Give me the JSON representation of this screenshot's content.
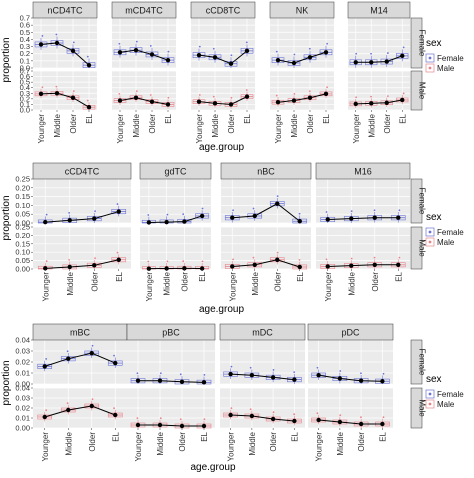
{
  "figure": {
    "y_axis_label": "proportion",
    "x_axis_label": "age.group",
    "legend_title": "sex",
    "legend_entries": [
      "Female",
      "Male"
    ],
    "facet_rows": [
      "Female",
      "Male"
    ],
    "categories": [
      "Younger",
      "Middle",
      "Older",
      "EL"
    ]
  },
  "colors": {
    "panel_bg": "#ebebeb",
    "strip_bg": "#d9d9d9",
    "grid": "#ffffff",
    "female": "#6b74d6",
    "male": "#e8848c",
    "line": "#000000"
  },
  "chart_data": [
    {
      "type": "line",
      "group": 1,
      "ylim": [
        0,
        0.7
      ],
      "yticks": [
        0.0,
        0.1,
        0.2,
        0.3,
        0.4,
        0.5,
        0.6,
        0.7
      ],
      "ytick_labels": [
        "0.0",
        "0.1",
        "0.2",
        "0.3",
        "0.4",
        "0.5",
        "0.6",
        "0.7"
      ],
      "categories": [
        "Younger",
        "Middle",
        "Older",
        "EL"
      ],
      "grid": true,
      "legend": "right",
      "panels": [
        {
          "title": "nCD4TC",
          "Female": [
            0.33,
            0.35,
            0.24,
            0.04
          ],
          "Male": [
            0.29,
            0.3,
            0.22,
            0.05
          ]
        },
        {
          "title": "mCD4TC",
          "Female": [
            0.22,
            0.25,
            0.19,
            0.11
          ],
          "Male": [
            0.17,
            0.22,
            0.15,
            0.1
          ]
        },
        {
          "title": "cCD8TC",
          "Female": [
            0.18,
            0.15,
            0.06,
            0.24
          ],
          "Male": [
            0.15,
            0.12,
            0.1,
            0.24
          ]
        },
        {
          "title": "NK",
          "Female": [
            0.11,
            0.07,
            0.15,
            0.22
          ],
          "Male": [
            0.14,
            0.17,
            0.22,
            0.29
          ]
        },
        {
          "title": "M14",
          "Female": [
            0.08,
            0.08,
            0.09,
            0.17
          ],
          "Male": [
            0.11,
            0.12,
            0.13,
            0.18
          ]
        }
      ]
    },
    {
      "type": "line",
      "group": 2,
      "ylim": [
        0,
        0.25
      ],
      "yticks": [
        0.0,
        0.05,
        0.1,
        0.15,
        0.2,
        0.25
      ],
      "ytick_labels": [
        "0.00",
        "0.05",
        "0.10",
        "0.15",
        "0.20",
        "0.25"
      ],
      "categories": [
        "Younger",
        "Middle",
        "Older",
        "EL"
      ],
      "grid": true,
      "legend": "right",
      "panels": [
        {
          "title": "cCD4TC",
          "Female": [
            0.005,
            0.015,
            0.025,
            0.065
          ],
          "Male": [
            0.004,
            0.012,
            0.022,
            0.055
          ]
        },
        {
          "title": "gdTC",
          "Female": [
            0.003,
            0.005,
            0.008,
            0.04
          ],
          "Male": [
            0.002,
            0.003,
            0.004,
            0.003
          ]
        },
        {
          "title": "nBC",
          "Female": [
            0.03,
            0.04,
            0.11,
            0.01
          ],
          "Male": [
            0.015,
            0.025,
            0.055,
            0.012
          ]
        },
        {
          "title": "M16",
          "Female": [
            0.02,
            0.025,
            0.03,
            0.03
          ],
          "Male": [
            0.015,
            0.02,
            0.025,
            0.025
          ]
        }
      ]
    },
    {
      "type": "line",
      "group": 3,
      "ylim": [
        0,
        0.04
      ],
      "yticks": [
        0.0,
        0.01,
        0.02,
        0.03,
        0.04
      ],
      "ytick_labels": [
        "0.00",
        "0.01",
        "0.02",
        "0.03",
        "0.04"
      ],
      "categories": [
        "Younger",
        "Middle",
        "Older",
        "EL"
      ],
      "grid": true,
      "legend": "right",
      "panels": [
        {
          "title": "mBC",
          "Female": [
            0.016,
            0.023,
            0.028,
            0.019
          ],
          "Male": [
            0.011,
            0.018,
            0.022,
            0.013
          ]
        },
        {
          "title": "pBC",
          "Female": [
            0.003,
            0.003,
            0.002,
            0.0015
          ],
          "Male": [
            0.003,
            0.003,
            0.002,
            0.002
          ]
        },
        {
          "title": "mDC",
          "Female": [
            0.009,
            0.008,
            0.006,
            0.004
          ],
          "Male": [
            0.013,
            0.012,
            0.009,
            0.007
          ]
        },
        {
          "title": "pDC",
          "Female": [
            0.008,
            0.005,
            0.003,
            0.0025
          ],
          "Male": [
            0.008,
            0.006,
            0.004,
            0.004
          ]
        }
      ]
    }
  ]
}
